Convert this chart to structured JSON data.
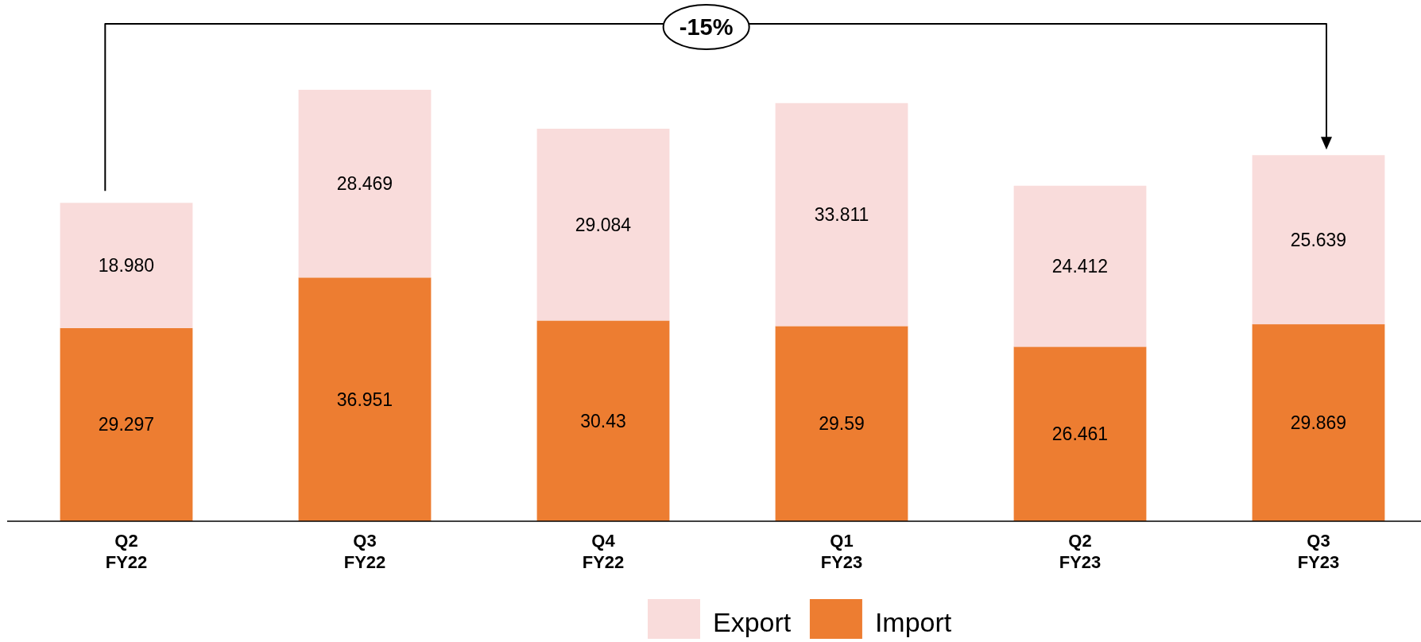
{
  "chart_data": {
    "type": "bar",
    "stacked": true,
    "categories": [
      "Q2\nFY22",
      "Q3\nFY22",
      "Q4\nFY22",
      "Q1\nFY23",
      "Q2\nFY23",
      "Q3\nFY23"
    ],
    "series": [
      {
        "name": "Import",
        "color": "#ed7d31",
        "values": [
          29.297,
          36.951,
          30.43,
          29.59,
          26.461,
          29.869
        ],
        "value_labels": [
          "29.297",
          "36.951",
          "30.43",
          "29.59",
          "26.461",
          "29.869"
        ]
      },
      {
        "name": "Export",
        "color": "#f9dcdb",
        "values": [
          18.98,
          28.469,
          29.084,
          33.811,
          24.412,
          25.639
        ],
        "value_labels": [
          "18.980",
          "28.469",
          "29.084",
          "33.811",
          "24.412",
          "25.639"
        ]
      }
    ],
    "annotations": [
      "-15%"
    ],
    "legend": "bottom",
    "tick_labels": "x"
  }
}
